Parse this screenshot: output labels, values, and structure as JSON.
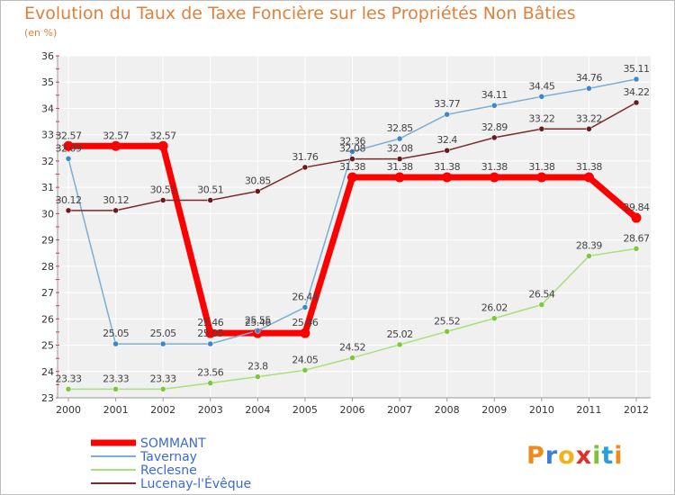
{
  "title": "Evolution du Taux de Taxe Foncière sur les Propriétés Non Bâties",
  "unit": "(en %)",
  "brand": {
    "letters": [
      "P",
      "r",
      "o",
      "x",
      "i",
      "t",
      "i"
    ],
    "colors": [
      "#f08a1c",
      "#3a7ed8",
      "#f0b419",
      "#e0302a",
      "#7ec23a",
      "#2aa0d8",
      "#f08a1c"
    ]
  },
  "chart_data": {
    "type": "line",
    "title": "Evolution du Taux de Taxe Foncière sur les Propriétés Non Bâties",
    "ylabel": "(en %)",
    "x": [
      "2000",
      "2001",
      "2002",
      "2003",
      "2004",
      "2005",
      "2006",
      "2007",
      "2008",
      "2009",
      "2010",
      "2011",
      "2012"
    ],
    "ylim": [
      23,
      36
    ],
    "yticks": [
      23,
      24,
      25,
      26,
      27,
      28,
      29,
      30,
      31,
      32,
      33,
      34,
      35,
      36
    ],
    "grid": true,
    "legend_position": "bottom-left",
    "series": [
      {
        "name": "SOMMANT",
        "color": "#ff0000",
        "dot": "#ff0000",
        "width": 7,
        "r": 5.5,
        "labelColor": "#444444",
        "values": [
          32.57,
          32.57,
          32.57,
          25.46,
          25.46,
          25.46,
          31.38,
          31.38,
          31.38,
          31.38,
          31.38,
          31.38,
          29.84
        ]
      },
      {
        "name": "Tavernay",
        "color": "#7aaed6",
        "dot": "#3a86cf",
        "width": 1.5,
        "r": 3,
        "labelColor": "#444444",
        "values": [
          32.09,
          25.05,
          25.05,
          25.05,
          25.55,
          26.44,
          32.36,
          32.85,
          33.77,
          34.11,
          34.45,
          34.76,
          35.11
        ]
      },
      {
        "name": "Reclesne",
        "color": "#a8e07a",
        "dot": "#7cc83a",
        "width": 1.5,
        "r": 3,
        "labelColor": "#444444",
        "values": [
          23.33,
          23.33,
          23.33,
          23.56,
          23.8,
          24.05,
          24.52,
          25.02,
          25.52,
          26.02,
          26.54,
          28.39,
          28.67
        ]
      },
      {
        "name": "Lucenay-l'Évêque",
        "color": "#7a2a2a",
        "dot": "#6a1a1a",
        "width": 1.5,
        "r": 3,
        "labelColor": "#444444",
        "values": [
          30.12,
          30.12,
          30.51,
          30.51,
          30.85,
          31.76,
          32.08,
          32.08,
          32.4,
          32.89,
          33.22,
          33.22,
          34.22
        ]
      }
    ]
  }
}
